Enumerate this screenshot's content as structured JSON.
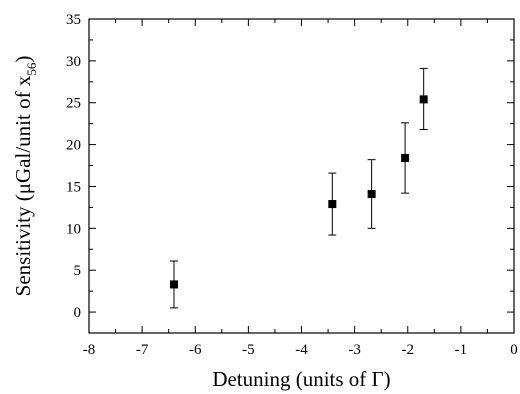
{
  "chart_data": {
    "type": "scatter",
    "title": "",
    "xlabel": "Detuning (units of Γ)",
    "ylabel": {
      "prefix": "Sensitivity (μGal/unit of x",
      "subscript": "56",
      "suffix": ")"
    },
    "xlim": [
      -8,
      0
    ],
    "ylim": [
      -2.5,
      35
    ],
    "xticks": [
      -8,
      -7,
      -6,
      -5,
      -4,
      -3,
      -2,
      -1,
      0
    ],
    "xtick_labels": [
      "-8",
      "-7",
      "-6",
      "-5",
      "-4",
      "-3",
      "-2",
      "-1",
      "0"
    ],
    "yticks": [
      0,
      5,
      10,
      15,
      20,
      25,
      30,
      35
    ],
    "ytick_labels": [
      "0",
      "5",
      "10",
      "15",
      "20",
      "25",
      "30",
      "35"
    ],
    "grid": false,
    "series": [
      {
        "marker": "square",
        "color": "#000000",
        "x": [
          -6.4,
          -3.42,
          -2.68,
          -2.05,
          -1.7
        ],
        "y": [
          3.3,
          12.9,
          14.1,
          18.4,
          25.4
        ],
        "y_err_low": [
          2.8,
          3.7,
          4.1,
          4.2,
          3.6
        ],
        "y_err_high": [
          2.8,
          3.7,
          4.1,
          4.2,
          3.7
        ]
      }
    ]
  }
}
